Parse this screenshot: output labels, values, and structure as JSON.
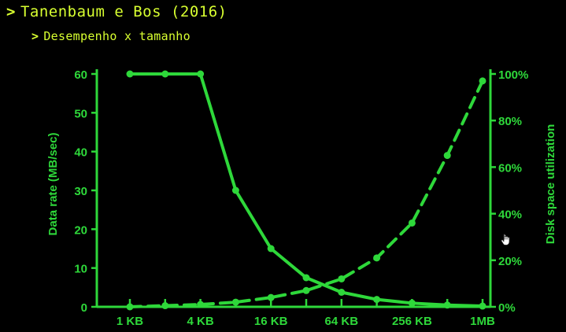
{
  "slide": {
    "title": "Tanenbaum e Bos (2016)",
    "subtitle": "Desempenho x tamanho",
    "bullet_glyph": ">",
    "text_color": "#d8ff30"
  },
  "cursor": {
    "icon": "hand-pointer-icon"
  },
  "chart_data": {
    "type": "line",
    "background": "#000000",
    "color": "#2ed83a",
    "xlabel": "",
    "x_scale": "log2",
    "x_tick_labels": [
      "1 KB",
      "4 KB",
      "16 KB",
      "64 KB",
      "256 KB",
      "1MB"
    ],
    "x_tick_values_kb": [
      1,
      4,
      16,
      64,
      256,
      1024
    ],
    "x_points_kb": [
      1,
      2,
      4,
      8,
      16,
      32,
      64,
      128,
      256,
      512,
      1024
    ],
    "y_left": {
      "label": "Data rate (MB/sec)",
      "lim": [
        0,
        60
      ],
      "ticks": [
        "0",
        "10",
        "20",
        "30",
        "40",
        "50",
        "60"
      ],
      "tick_values": [
        0,
        10,
        20,
        30,
        40,
        50,
        60
      ]
    },
    "y_right": {
      "label": "Disk space utilization",
      "lim": [
        0,
        100
      ],
      "ticks": [
        "0%",
        "20%",
        "40%",
        "60%",
        "80%",
        "100%"
      ],
      "tick_values": [
        0,
        20,
        40,
        60,
        80,
        100
      ]
    },
    "grid": false,
    "series": [
      {
        "axis": "left",
        "style": "solid",
        "values": [
          60,
          60,
          60,
          30,
          15,
          7.5,
          3.75,
          1.9,
          0.95,
          0.45,
          0.2
        ]
      },
      {
        "axis": "right",
        "style": "dashed",
        "values": [
          0,
          0.5,
          1,
          2,
          4,
          7,
          12,
          21,
          36,
          65,
          97
        ]
      }
    ]
  }
}
